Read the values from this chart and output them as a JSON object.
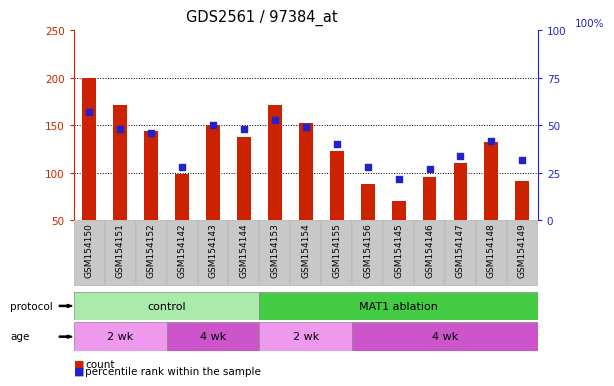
{
  "title": "GDS2561 / 97384_at",
  "samples": [
    "GSM154150",
    "GSM154151",
    "GSM154152",
    "GSM154142",
    "GSM154143",
    "GSM154144",
    "GSM154153",
    "GSM154154",
    "GSM154155",
    "GSM154156",
    "GSM154145",
    "GSM154146",
    "GSM154147",
    "GSM154148",
    "GSM154149"
  ],
  "red_values": [
    200,
    172,
    144,
    99,
    150,
    138,
    172,
    153,
    123,
    88,
    71,
    96,
    110,
    133,
    92
  ],
  "blue_values": [
    57,
    48,
    46,
    28,
    50,
    48,
    53,
    49,
    40,
    28,
    22,
    27,
    34,
    42,
    32
  ],
  "ylim_left": [
    50,
    250
  ],
  "ylim_right": [
    0,
    100
  ],
  "yticks_left": [
    50,
    100,
    150,
    200,
    250
  ],
  "yticks_right": [
    0,
    25,
    50,
    75,
    100
  ],
  "bar_color": "#cc2200",
  "square_color": "#2222cc",
  "bg_color": "#c8c8c8",
  "protocol_groups": [
    {
      "label": "control",
      "start": 0,
      "end": 6,
      "color": "#aaeaaa"
    },
    {
      "label": "MAT1 ablation",
      "start": 6,
      "end": 15,
      "color": "#44cc44"
    }
  ],
  "age_groups": [
    {
      "label": "2 wk",
      "start": 0,
      "end": 3,
      "color": "#ee99ee"
    },
    {
      "label": "4 wk",
      "start": 3,
      "end": 6,
      "color": "#cc55cc"
    },
    {
      "label": "2 wk",
      "start": 6,
      "end": 9,
      "color": "#ee99ee"
    },
    {
      "label": "4 wk",
      "start": 9,
      "end": 15,
      "color": "#cc55cc"
    }
  ],
  "protocol_label": "protocol",
  "age_label": "age",
  "legend_count": "count",
  "legend_pct": "percentile rank within the sample",
  "axis_label_color_left": "#cc2200",
  "axis_label_color_right": "#2222cc",
  "gridlines": [
    100,
    150,
    200
  ]
}
